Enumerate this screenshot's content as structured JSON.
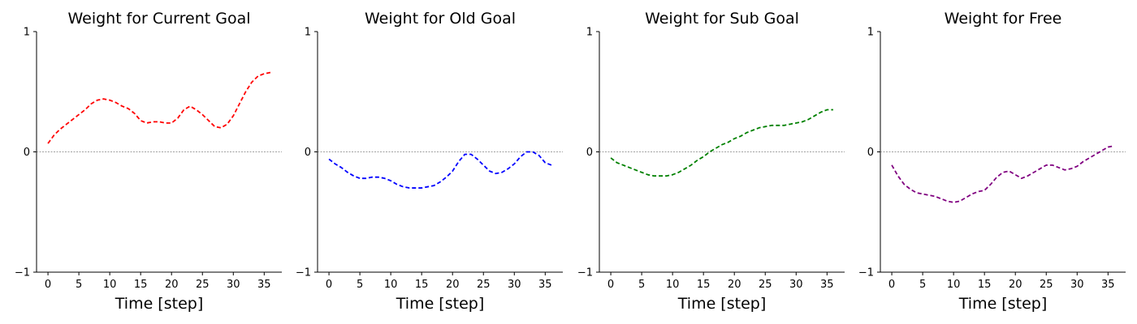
{
  "chart_data": [
    {
      "type": "line",
      "title": "Weight for Current Goal",
      "xlabel": "Time [step]",
      "ylabel": "",
      "xlim": [
        -1.85,
        37.85
      ],
      "ylim": [
        -1,
        1
      ],
      "xticks": [
        0,
        5,
        10,
        15,
        20,
        25,
        30,
        35
      ],
      "yticks": [
        -1,
        0,
        1
      ],
      "zero_line": true,
      "series": [
        {
          "color": "#ff0000",
          "linestyle": "dashed",
          "x": [
            0,
            1,
            2,
            3,
            4,
            5,
            6,
            7,
            8,
            9,
            10,
            11,
            12,
            13,
            14,
            15,
            16,
            17,
            18,
            19,
            20,
            21,
            22,
            23,
            24,
            25,
            26,
            27,
            28,
            29,
            30,
            31,
            32,
            33,
            34,
            35,
            36
          ],
          "values": [
            0.07,
            0.14,
            0.19,
            0.23,
            0.27,
            0.31,
            0.35,
            0.4,
            0.43,
            0.44,
            0.43,
            0.41,
            0.38,
            0.36,
            0.32,
            0.26,
            0.24,
            0.25,
            0.25,
            0.24,
            0.24,
            0.28,
            0.35,
            0.38,
            0.35,
            0.31,
            0.26,
            0.21,
            0.2,
            0.23,
            0.3,
            0.4,
            0.5,
            0.58,
            0.63,
            0.65,
            0.66
          ]
        }
      ]
    },
    {
      "type": "line",
      "title": "Weight for Old Goal",
      "xlabel": "Time [step]",
      "ylabel": "",
      "xlim": [
        -1.85,
        37.85
      ],
      "ylim": [
        -1,
        1
      ],
      "xticks": [
        0,
        5,
        10,
        15,
        20,
        25,
        30,
        35
      ],
      "yticks": [
        -1,
        0,
        1
      ],
      "zero_line": true,
      "series": [
        {
          "color": "#0000ff",
          "linestyle": "dashed",
          "x": [
            0,
            1,
            2,
            3,
            4,
            5,
            6,
            7,
            8,
            9,
            10,
            11,
            12,
            13,
            14,
            15,
            16,
            17,
            18,
            19,
            20,
            21,
            22,
            23,
            24,
            25,
            26,
            27,
            28,
            29,
            30,
            31,
            32,
            33,
            34,
            35,
            36
          ],
          "values": [
            -0.06,
            -0.1,
            -0.13,
            -0.17,
            -0.2,
            -0.22,
            -0.22,
            -0.21,
            -0.21,
            -0.22,
            -0.24,
            -0.27,
            -0.29,
            -0.3,
            -0.3,
            -0.3,
            -0.29,
            -0.28,
            -0.25,
            -0.21,
            -0.16,
            -0.08,
            -0.02,
            -0.02,
            -0.06,
            -0.11,
            -0.16,
            -0.18,
            -0.17,
            -0.14,
            -0.1,
            -0.04,
            0.0,
            0.0,
            -0.03,
            -0.09,
            -0.11
          ]
        }
      ]
    },
    {
      "type": "line",
      "title": "Weight for Sub Goal",
      "xlabel": "Time [step]",
      "ylabel": "",
      "xlim": [
        -1.85,
        37.85
      ],
      "ylim": [
        -1,
        1
      ],
      "xticks": [
        0,
        5,
        10,
        15,
        20,
        25,
        30,
        35
      ],
      "yticks": [
        -1,
        0,
        1
      ],
      "zero_line": true,
      "series": [
        {
          "color": "#008000",
          "linestyle": "dashed",
          "x": [
            0,
            1,
            2,
            3,
            4,
            5,
            6,
            7,
            8,
            9,
            10,
            11,
            12,
            13,
            14,
            15,
            16,
            17,
            18,
            19,
            20,
            21,
            22,
            23,
            24,
            25,
            26,
            27,
            28,
            29,
            30,
            31,
            32,
            33,
            34,
            35,
            36
          ],
          "values": [
            -0.05,
            -0.09,
            -0.11,
            -0.13,
            -0.15,
            -0.17,
            -0.19,
            -0.2,
            -0.2,
            -0.2,
            -0.19,
            -0.17,
            -0.14,
            -0.11,
            -0.07,
            -0.04,
            0.0,
            0.03,
            0.06,
            0.08,
            0.11,
            0.13,
            0.16,
            0.18,
            0.2,
            0.21,
            0.22,
            0.22,
            0.22,
            0.23,
            0.24,
            0.25,
            0.27,
            0.3,
            0.33,
            0.35,
            0.35
          ]
        }
      ]
    },
    {
      "type": "line",
      "title": "Weight for Free",
      "xlabel": "Time [step]",
      "ylabel": "",
      "xlim": [
        -1.85,
        37.85
      ],
      "ylim": [
        -1,
        1
      ],
      "xticks": [
        0,
        5,
        10,
        15,
        20,
        25,
        30,
        35
      ],
      "yticks": [
        -1,
        0,
        1
      ],
      "zero_line": true,
      "series": [
        {
          "color": "#800080",
          "linestyle": "dashed",
          "x": [
            0,
            1,
            2,
            3,
            4,
            5,
            6,
            7,
            8,
            9,
            10,
            11,
            12,
            13,
            14,
            15,
            16,
            17,
            18,
            19,
            20,
            21,
            22,
            23,
            24,
            25,
            26,
            27,
            28,
            29,
            30,
            31,
            32,
            33,
            34,
            35,
            36
          ],
          "values": [
            -0.11,
            -0.2,
            -0.27,
            -0.31,
            -0.34,
            -0.35,
            -0.36,
            -0.37,
            -0.39,
            -0.41,
            -0.42,
            -0.41,
            -0.38,
            -0.35,
            -0.33,
            -0.32,
            -0.27,
            -0.21,
            -0.17,
            -0.16,
            -0.19,
            -0.22,
            -0.2,
            -0.17,
            -0.14,
            -0.11,
            -0.11,
            -0.13,
            -0.15,
            -0.14,
            -0.12,
            -0.08,
            -0.05,
            -0.02,
            0.01,
            0.04,
            0.05
          ]
        }
      ]
    }
  ]
}
